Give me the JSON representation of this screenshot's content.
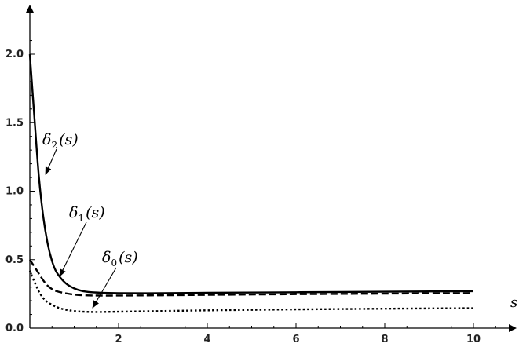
{
  "chart_data": {
    "type": "line",
    "title": "",
    "xlabel": "s",
    "ylabel": "",
    "xlim": [
      0,
      11
    ],
    "ylim": [
      0,
      2.2
    ],
    "x_ticks": [
      2,
      4,
      6,
      8,
      10
    ],
    "x_tick_labels": [
      "2",
      "4",
      "6",
      "8",
      "10"
    ],
    "y_ticks": [
      0.0,
      0.5,
      1.0,
      1.5,
      2.0
    ],
    "y_tick_labels": [
      "0.0",
      "0.5",
      "1.0",
      "1.5",
      "2.0"
    ],
    "grid": false,
    "series": [
      {
        "name": "δ2(s)",
        "style": "solid",
        "x": [
          0,
          0.1,
          0.2,
          0.3,
          0.4,
          0.5,
          0.6,
          0.8,
          1.0,
          1.2,
          1.5,
          2,
          3,
          4,
          6,
          8,
          10
        ],
        "y": [
          2.0,
          1.55,
          1.12,
          0.82,
          0.62,
          0.49,
          0.41,
          0.33,
          0.29,
          0.27,
          0.26,
          0.255,
          0.255,
          0.258,
          0.262,
          0.266,
          0.27
        ]
      },
      {
        "name": "δ1(s)",
        "style": "dashed",
        "x": [
          0,
          0.1,
          0.2,
          0.3,
          0.4,
          0.5,
          0.6,
          0.8,
          1.0,
          1.2,
          1.5,
          2,
          3,
          4,
          6,
          8,
          10
        ],
        "y": [
          0.5,
          0.45,
          0.4,
          0.35,
          0.31,
          0.285,
          0.27,
          0.255,
          0.245,
          0.24,
          0.238,
          0.238,
          0.24,
          0.243,
          0.248,
          0.252,
          0.256
        ]
      },
      {
        "name": "δ0(s)",
        "style": "dotted",
        "x": [
          0,
          0.1,
          0.2,
          0.3,
          0.4,
          0.6,
          0.8,
          1.0,
          1.2,
          1.5,
          2,
          3,
          4,
          6,
          8,
          10
        ],
        "y": [
          0.42,
          0.34,
          0.27,
          0.22,
          0.19,
          0.155,
          0.135,
          0.125,
          0.12,
          0.118,
          0.12,
          0.125,
          0.13,
          0.137,
          0.142,
          0.146
        ]
      }
    ],
    "annotations": [
      {
        "text": "δ",
        "sub": "2",
        "arg": "(s)",
        "series": "δ2(s)",
        "x": 0.3,
        "y": 1.12
      },
      {
        "text": "δ",
        "sub": "1",
        "arg": "(s)",
        "series": "δ1(s)",
        "x": 0.85,
        "y": 0.35
      },
      {
        "text": "δ",
        "sub": "0",
        "arg": "(s)",
        "series": "δ0(s)",
        "x": 1.45,
        "y": 0.13
      }
    ]
  }
}
